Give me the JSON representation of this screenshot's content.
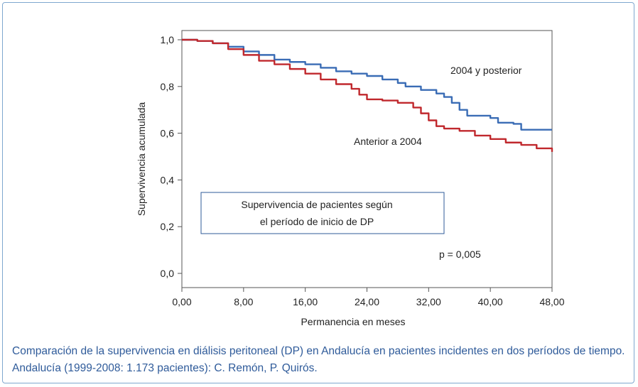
{
  "chart_data": {
    "type": "line",
    "xlabel": "Permanencia en meses",
    "ylabel": "Supervivencia acumulada",
    "xlim": [
      0,
      48
    ],
    "ylim": [
      0,
      1
    ],
    "x_ticks": [
      "0,00",
      "8,00",
      "16,00",
      "24,00",
      "32,00",
      "40,00",
      "48,00"
    ],
    "y_ticks": [
      "0,0",
      "0,2",
      "0,4",
      "0,6",
      "0,8",
      "1,0"
    ],
    "x_tick_values": [
      0,
      8,
      16,
      24,
      32,
      40,
      48
    ],
    "y_tick_values": [
      0,
      0.2,
      0.4,
      0.6,
      0.8,
      1.0
    ],
    "grid": false,
    "series": [
      {
        "name": "2004 y posterior",
        "color": "#3a6cb5",
        "step": true,
        "points": [
          [
            0,
            1.0
          ],
          [
            2,
            0.995
          ],
          [
            4,
            0.985
          ],
          [
            6,
            0.97
          ],
          [
            8,
            0.95
          ],
          [
            10,
            0.935
          ],
          [
            12,
            0.915
          ],
          [
            14,
            0.905
          ],
          [
            16,
            0.895
          ],
          [
            18,
            0.88
          ],
          [
            20,
            0.865
          ],
          [
            22,
            0.855
          ],
          [
            24,
            0.845
          ],
          [
            26,
            0.83
          ],
          [
            28,
            0.815
          ],
          [
            29,
            0.8
          ],
          [
            31,
            0.785
          ],
          [
            33,
            0.77
          ],
          [
            34,
            0.755
          ],
          [
            35,
            0.73
          ],
          [
            36,
            0.7
          ],
          [
            37,
            0.675
          ],
          [
            40,
            0.665
          ],
          [
            41,
            0.645
          ],
          [
            43,
            0.64
          ],
          [
            44,
            0.615
          ],
          [
            48,
            0.615
          ]
        ]
      },
      {
        "name": "Anterior a 2004",
        "color": "#c0282d",
        "step": true,
        "points": [
          [
            0,
            1.0
          ],
          [
            2,
            0.995
          ],
          [
            4,
            0.985
          ],
          [
            6,
            0.96
          ],
          [
            8,
            0.935
          ],
          [
            10,
            0.91
          ],
          [
            12,
            0.895
          ],
          [
            14,
            0.875
          ],
          [
            16,
            0.855
          ],
          [
            18,
            0.83
          ],
          [
            20,
            0.81
          ],
          [
            22,
            0.79
          ],
          [
            23,
            0.765
          ],
          [
            24,
            0.745
          ],
          [
            26,
            0.74
          ],
          [
            28,
            0.73
          ],
          [
            30,
            0.71
          ],
          [
            31,
            0.685
          ],
          [
            32,
            0.655
          ],
          [
            33,
            0.63
          ],
          [
            34,
            0.62
          ],
          [
            36,
            0.61
          ],
          [
            38,
            0.59
          ],
          [
            40,
            0.575
          ],
          [
            42,
            0.56
          ],
          [
            44,
            0.55
          ],
          [
            46,
            0.535
          ],
          [
            48,
            0.52
          ]
        ]
      }
    ],
    "legend": [
      {
        "label": "2004 y posterior",
        "color": "#3a6cb5"
      },
      {
        "label": "Anterior a 2004",
        "color": "#c0282d"
      }
    ],
    "annotations": {
      "box_line1": "Supervivencia de pacientes según",
      "box_line2": "el período de inicio de DP",
      "pvalue": "p = 0,005"
    }
  },
  "caption": {
    "line1": "Comparación de la supervivencia en diálisis peritoneal (DP) en Andalucía en pacientes incidentes en dos períodos de tiempo.",
    "line2": "Andalucía (1999-2008: 1.173 pacientes): C. Remón, P. Quirós."
  }
}
